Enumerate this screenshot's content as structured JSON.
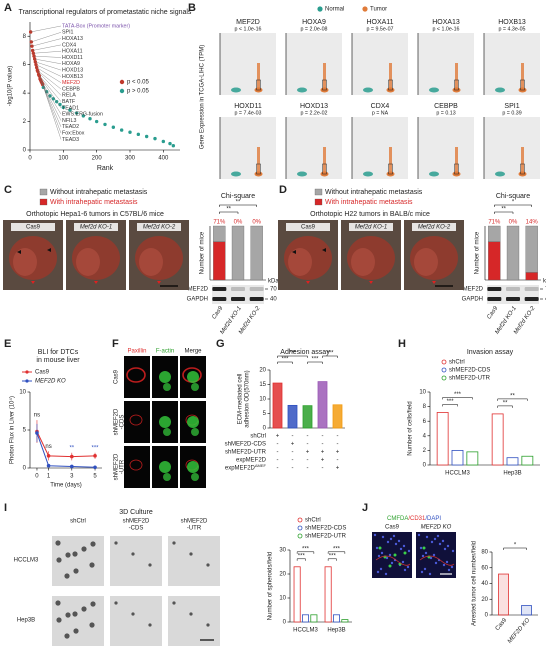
{
  "chart_data": [
    {
      "panel": "A",
      "type": "scatter",
      "title": "Transcriptional regulators of prometastatic niche signals",
      "xlabel": "Rank",
      "ylabel": "-log10(P value)",
      "xlim": [
        0,
        450
      ],
      "xticks": [
        0,
        100,
        200,
        300,
        400
      ],
      "ylim": [
        0,
        9
      ],
      "yticks": [
        0,
        2,
        4,
        6,
        8
      ],
      "series": [
        {
          "name": "p < 0.05",
          "color": "#c0392b",
          "x": [
            2,
            4,
            6,
            8,
            10,
            12,
            14,
            16,
            18,
            20,
            22,
            24,
            26,
            28,
            30,
            32,
            34,
            36,
            38
          ],
          "y": [
            8.3,
            7.6,
            7.3,
            7.0,
            6.8,
            6.6,
            6.4,
            6.2,
            6.0,
            5.8,
            5.6,
            5.5,
            5.3,
            5.2,
            5.0,
            4.9,
            4.8,
            4.7,
            4.6
          ]
        },
        {
          "name": "p > 0.05",
          "color": "#2a9d8f",
          "x": [
            40,
            50,
            60,
            70,
            80,
            90,
            100,
            120,
            140,
            160,
            180,
            200,
            225,
            250,
            275,
            300,
            325,
            350,
            375,
            400,
            420,
            430
          ],
          "y": [
            4.4,
            4.1,
            3.8,
            3.6,
            3.4,
            3.2,
            3.0,
            2.8,
            2.6,
            2.4,
            2.2,
            2.0,
            1.8,
            1.6,
            1.4,
            1.25,
            1.1,
            0.95,
            0.8,
            0.6,
            0.45,
            0.3
          ]
        }
      ],
      "labels": [
        {
          "text": "TATA-Box (Promoter marker)",
          "color": "#7b52ab"
        },
        {
          "text": "SPI1",
          "color": "#333333"
        },
        {
          "text": "HOXA13",
          "color": "#333333"
        },
        {
          "text": "CDX4",
          "color": "#333333"
        },
        {
          "text": "HOXA11",
          "color": "#333333"
        },
        {
          "text": "HOXD11",
          "color": "#333333"
        },
        {
          "text": "HOXA9",
          "color": "#333333"
        },
        {
          "text": "HOXD13",
          "color": "#333333"
        },
        {
          "text": "HOXB13",
          "color": "#333333"
        },
        {
          "text": "MEF2D",
          "color": "#d62728"
        },
        {
          "text": "CEBPB",
          "color": "#333333"
        },
        {
          "text": "RELA",
          "color": "#333333"
        },
        {
          "text": "BATF",
          "color": "#333333"
        },
        {
          "text": "TEAD1",
          "color": "#333333"
        },
        {
          "text": "EWS:ERG-fusion",
          "color": "#333333"
        },
        {
          "text": "NFIL3",
          "color": "#333333"
        },
        {
          "text": "TEAD2",
          "color": "#333333"
        },
        {
          "text": "Fox:Ebox",
          "color": "#333333"
        },
        {
          "text": "TEAD3",
          "color": "#333333"
        }
      ]
    },
    {
      "panel": "B",
      "type": "violin_grid",
      "ylabel": "Gene Expression in TCGA-LIHC (TPM)",
      "legend": [
        {
          "name": "Normal",
          "color": "#2a9d8f"
        },
        {
          "name": "Tumor",
          "color": "#e07b39"
        }
      ],
      "genes": [
        {
          "name": "MEF2D",
          "p": "p < 1.0e-16"
        },
        {
          "name": "HOXA9",
          "p": "p = 2.0e-08"
        },
        {
          "name": "HOXA11",
          "p": "p = 9.5e-07"
        },
        {
          "name": "HOXA13",
          "p": "p < 1.0e-16"
        },
        {
          "name": "HOXB13",
          "p": "p = 4.3e-05"
        },
        {
          "name": "HOXD11",
          "p": "p = 7.4e-03"
        },
        {
          "name": "HOXD13",
          "p": "p = 2.2e-02"
        },
        {
          "name": "CDX4",
          "p": "p = NA"
        },
        {
          "name": "CEBPB",
          "p": "p = 0.13"
        },
        {
          "name": "SPI1",
          "p": "p = 0.39"
        }
      ]
    },
    {
      "type": "stacked_bar",
      "title": "Chi-square",
      "ylabel": "Number of mice",
      "categories": [
        "Cas9",
        "Mef2d KO-1",
        "Mef2d KO-2"
      ],
      "ylim": [
        0,
        100
      ],
      "series": [
        {
          "name": "With intrahepatic metastasis",
          "color": "#d62728",
          "values": [
            71,
            0,
            0
          ],
          "value_labels": [
            "71%",
            "0%",
            "0%"
          ]
        },
        {
          "name": "Without intrahepatic metastasis",
          "color": "#a6a6a6",
          "values": [
            29,
            100,
            100
          ]
        }
      ],
      "annotations": [
        "**",
        "**"
      ]
    },
    {
      "type": "stacked_bar",
      "title": "Chi-square",
      "ylabel": "Number of mice",
      "categories": [
        "Cas9",
        "Mef2d KO-1",
        "Mef2d KO-2"
      ],
      "ylim": [
        0,
        100
      ],
      "series": [
        {
          "name": "With intrahepatic metastasis",
          "color": "#d62728",
          "values": [
            71,
            0,
            14
          ],
          "value_labels": [
            "71%",
            "0%",
            "14%"
          ]
        },
        {
          "name": "Without intrahepatic metastasis",
          "color": "#a6a6a6",
          "values": [
            29,
            100,
            86
          ]
        }
      ],
      "annotations": [
        "*",
        "**"
      ]
    },
    {
      "panel": "E",
      "type": "line",
      "title": [
        "BLI for DTCs",
        "in mouse liver"
      ],
      "ylabel": "Photon Flux in Liver (10⁴)",
      "xlabel": "Time (days)",
      "x": [
        0,
        1,
        3,
        5
      ],
      "xlim": [
        -0.6,
        5.6
      ],
      "xticks": [
        0,
        1,
        3,
        5
      ],
      "ylim": [
        0,
        10
      ],
      "yticks": [
        0,
        5,
        10
      ],
      "series": [
        {
          "name": "Cas9",
          "color": "#e03030",
          "values": [
            4.8,
            1.6,
            1.5,
            1.6
          ],
          "errors": [
            1.5,
            0.6,
            0.5,
            0.4
          ]
        },
        {
          "name": "MEF2D KO",
          "color": "#3050c0",
          "values": [
            4.6,
            0.3,
            0.2,
            0.1
          ],
          "errors": [
            1.2,
            0.2,
            0.1,
            0.1
          ]
        }
      ],
      "annotations": [
        "ns",
        "ns",
        "**",
        "***"
      ]
    },
    {
      "panel": "G",
      "type": "bar",
      "title": "Adhesion assay",
      "ylabel": [
        "ECM-mediated cell",
        "adhesion OD(570nm)"
      ],
      "values": [
        15.5,
        7.8,
        7.7,
        16.0,
        8.0
      ],
      "colors": [
        "#e03030",
        "#3050c0",
        "#2ca02c",
        "#9b59b6",
        "#f39c12"
      ],
      "ylim": [
        0,
        20
      ],
      "yticks": [
        0,
        5,
        10,
        15,
        20
      ],
      "conditions": [
        {
          "name": "shCtrl",
          "signs": [
            "+",
            "-",
            "-",
            "-",
            "-"
          ]
        },
        {
          "name": "shMEF2D-CDS",
          "signs": [
            "-",
            "+",
            "-",
            "-",
            "-"
          ]
        },
        {
          "name": "shMEF2D-UTR",
          "signs": [
            "-",
            "-",
            "+",
            "+",
            "+"
          ]
        },
        {
          "name": "expMEF2D",
          "signs": [
            "-",
            "-",
            "-",
            "+",
            "-"
          ]
        },
        {
          "name": "expMEF2D",
          "superscript": "ΔMEF",
          "signs": [
            "-",
            "-",
            "-",
            "-",
            "+"
          ]
        }
      ],
      "annotations": [
        "***",
        "***",
        "***",
        "***"
      ]
    },
    {
      "panel": "H",
      "type": "grouped_bar",
      "title": "Invasion assay",
      "ylabel": "Number of cells/field",
      "categories": [
        "HCCLM3",
        "Hep3B"
      ],
      "ylim": [
        0,
        10
      ],
      "yticks": [
        0,
        2,
        4,
        6,
        8,
        10
      ],
      "series": [
        {
          "name": "shCtrl",
          "color": "#e03030",
          "values": [
            7.2,
            7.0
          ]
        },
        {
          "name": "shMEF2D-CDS",
          "color": "#3050c0",
          "values": [
            2.0,
            1.0
          ]
        },
        {
          "name": "shMEF2D-UTR",
          "color": "#2ca02c",
          "values": [
            1.8,
            1.2
          ]
        }
      ],
      "annotations": [
        "***",
        "***",
        "**",
        "**"
      ]
    },
    {
      "type": "grouped_bar",
      "ylabel": "Number of spheroids/field",
      "categories": [
        "HCCLM3",
        "Hep3B"
      ],
      "ylim": [
        0,
        30
      ],
      "yticks": [
        0,
        10,
        20,
        30
      ],
      "series": [
        {
          "name": "shCtrl",
          "color": "#e03030",
          "values": [
            23,
            23
          ]
        },
        {
          "name": "shMEF2D-CDS",
          "color": "#3050c0",
          "values": [
            3,
            3
          ]
        },
        {
          "name": "shMEF2D-UTR",
          "color": "#2ca02c",
          "values": [
            3,
            1
          ]
        }
      ],
      "annotations": [
        "***",
        "***",
        "***",
        "***"
      ]
    },
    {
      "type": "bar",
      "ylabel": "Arrested tumor cell number/field",
      "categories": [
        "Cas9",
        "MEF2D KO"
      ],
      "values": [
        52,
        12
      ],
      "colors": [
        "#e03030",
        "#3050c0"
      ],
      "ylim": [
        0,
        80
      ],
      "yticks": [
        0,
        20,
        40,
        60,
        80
      ],
      "annotations": [
        "*"
      ]
    }
  ],
  "figure": {
    "C": {
      "label": "C",
      "photo_title": "Orthotopic Hepa1-6 tumors in C57BL/6 mice",
      "photo_labels": [
        "Cas9",
        "Mef2d KO-1",
        "Mef2d KO-2"
      ],
      "blot": {
        "bands": [
          "MEF2D",
          "GAPDH"
        ],
        "unit": "kDa",
        "markers": [
          "70",
          "40"
        ]
      }
    },
    "D": {
      "label": "D",
      "photo_title": "Orthotopic H22 tumors in BALB/c mice",
      "photo_labels": [
        "Cas9",
        "Mef2d KO-1",
        "Mef2d KO-2"
      ],
      "blot": {
        "bands": [
          "MEF2D",
          "GAPDH"
        ],
        "unit": "kDa",
        "markers": [
          "70",
          "40"
        ]
      }
    },
    "F": {
      "label": "F",
      "columns": [
        "Paxillin",
        "F-actin",
        "Merge"
      ],
      "column_colors": [
        "#e03030",
        "#2ca02c",
        "#222222"
      ],
      "rows": [
        [
          "Cas9"
        ],
        [
          "shMEF2D",
          "-CDS"
        ],
        [
          "shMEF2D",
          "-UTR"
        ]
      ]
    },
    "I": {
      "label": "I",
      "title": "3D Culture",
      "columns": [
        [
          "shCtrl"
        ],
        [
          "shMEF2D",
          "-CDS"
        ],
        [
          "shMEF2D",
          "-UTR"
        ]
      ],
      "rows": [
        "HCCLM3",
        "Hep3B"
      ]
    },
    "J": {
      "label": "J",
      "stain": [
        {
          "text": "CMFDA",
          "color": "#2ca02c"
        },
        {
          "text": "/CD31",
          "color": "#e03030"
        },
        {
          "text": "/DAPI",
          "color": "#3050c0"
        }
      ],
      "columns": [
        "Cas9",
        "MEF2D KO"
      ]
    }
  }
}
